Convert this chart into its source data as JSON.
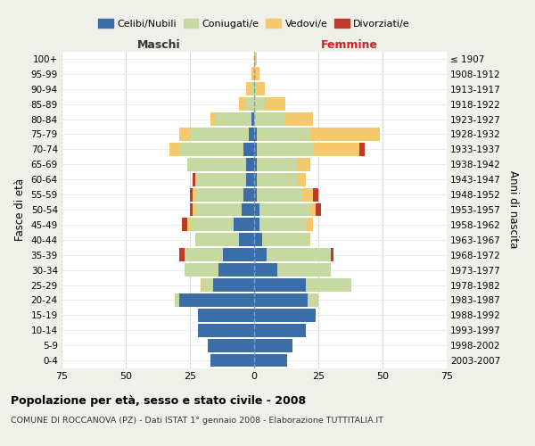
{
  "age_groups": [
    "0-4",
    "5-9",
    "10-14",
    "15-19",
    "20-24",
    "25-29",
    "30-34",
    "35-39",
    "40-44",
    "45-49",
    "50-54",
    "55-59",
    "60-64",
    "65-69",
    "70-74",
    "75-79",
    "80-84",
    "85-89",
    "90-94",
    "95-99",
    "100+"
  ],
  "birth_years": [
    "2003-2007",
    "1998-2002",
    "1993-1997",
    "1988-1992",
    "1983-1987",
    "1978-1982",
    "1973-1977",
    "1968-1972",
    "1963-1967",
    "1958-1962",
    "1953-1957",
    "1948-1952",
    "1943-1947",
    "1938-1942",
    "1933-1937",
    "1928-1932",
    "1923-1927",
    "1918-1922",
    "1913-1917",
    "1908-1912",
    "≤ 1907"
  ],
  "maschi": {
    "celibi": [
      17,
      18,
      22,
      22,
      29,
      16,
      14,
      12,
      6,
      8,
      5,
      4,
      3,
      3,
      4,
      2,
      1,
      0,
      0,
      0,
      0
    ],
    "coniugati": [
      0,
      0,
      0,
      0,
      2,
      4,
      13,
      15,
      17,
      17,
      18,
      19,
      20,
      23,
      25,
      23,
      14,
      3,
      1,
      0,
      0
    ],
    "vedovi": [
      0,
      0,
      0,
      0,
      0,
      1,
      0,
      0,
      0,
      1,
      1,
      1,
      0,
      0,
      4,
      4,
      2,
      3,
      2,
      1,
      0
    ],
    "divorziati": [
      0,
      0,
      0,
      0,
      0,
      0,
      0,
      2,
      0,
      2,
      1,
      1,
      1,
      0,
      0,
      0,
      0,
      0,
      0,
      0,
      0
    ]
  },
  "femmine": {
    "nubili": [
      13,
      15,
      20,
      24,
      21,
      20,
      9,
      5,
      3,
      2,
      2,
      1,
      1,
      1,
      1,
      1,
      0,
      0,
      0,
      0,
      0
    ],
    "coniugate": [
      0,
      0,
      0,
      0,
      4,
      18,
      21,
      25,
      18,
      18,
      20,
      18,
      16,
      16,
      22,
      21,
      12,
      4,
      1,
      0,
      0
    ],
    "vedove": [
      0,
      0,
      0,
      0,
      0,
      0,
      0,
      0,
      1,
      3,
      2,
      4,
      3,
      5,
      18,
      27,
      11,
      8,
      3,
      2,
      1
    ],
    "divorziate": [
      0,
      0,
      0,
      0,
      0,
      0,
      0,
      1,
      0,
      0,
      2,
      2,
      0,
      0,
      2,
      0,
      0,
      0,
      0,
      0,
      0
    ]
  },
  "colors": {
    "celibi": "#3b6ea8",
    "coniugati": "#c5d9a0",
    "vedovi": "#f5c96b",
    "divorziati": "#c0392b"
  },
  "xlim": 75,
  "title": "Popolazione per età, sesso e stato civile - 2008",
  "subtitle": "COMUNE DI ROCCANOVA (PZ) - Dati ISTAT 1° gennaio 2008 - Elaborazione TUTTITALIA.IT",
  "ylabel_left": "Fasce di età",
  "ylabel_right": "Anni di nascita",
  "xlabel_left": "Maschi",
  "xlabel_right": "Femmine",
  "background_color": "#f0f0eb",
  "plot_background": "#ffffff"
}
